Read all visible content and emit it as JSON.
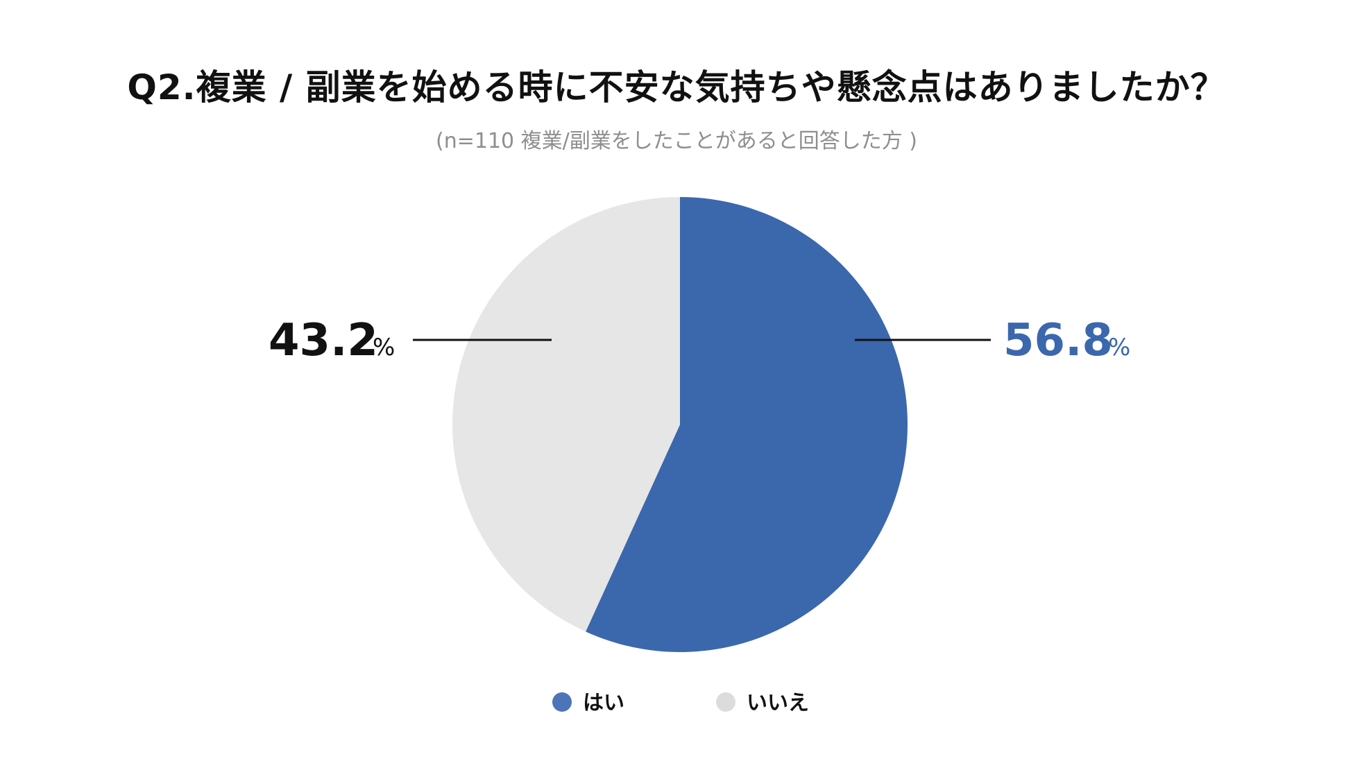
{
  "title": "Q2.複業 / 副業を始める時に不安な気持ちや懸念点はありましたか？",
  "subtitle": "(n=110 複業/副業をしたことがあると回答した方 )",
  "chart_data": {
    "type": "pie",
    "title": "Q2.複業 / 副業を始める時に不安な気持ちや懸念点はありましたか？",
    "subtitle": "(n=110 複業/副業をしたことがあると回答した方 )",
    "categories": [
      "はい",
      "いいえ"
    ],
    "values": [
      56.8,
      43.2
    ],
    "value_labels": [
      "56.8",
      "43.2"
    ],
    "unit": "%",
    "colors": [
      "#3b67ad",
      "#e6e6e6"
    ],
    "label_colors": [
      "#3b67ad",
      "#111111"
    ],
    "legend_position": "bottom"
  }
}
